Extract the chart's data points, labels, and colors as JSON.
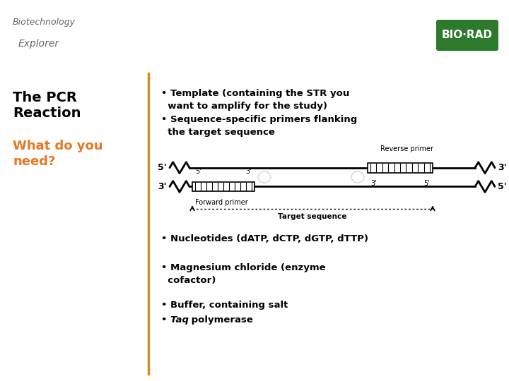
{
  "bg_color": "#ffffff",
  "header_bg": "#111111",
  "header_bar_color": "#e87722",
  "divider_color": "#c8922a",
  "title_text": "The PCR\nReaction",
  "title_color": "#000000",
  "subtitle_text": "What do you\nneed?",
  "subtitle_color": "#e87722",
  "bullet1a": "• Template (containing the STR you",
  "bullet1b": "  want to amplify for the study)",
  "bullet2a": "• Sequence-specific primers flanking",
  "bullet2b": "  the target sequence",
  "bullet3": "• Nucleotides (dATP, dCTP, dGTP, dTTP)",
  "bullet4a": "• Magnesium chloride (enzyme",
  "bullet4b": "  cofactor)",
  "bullet5": "• Buffer, containing salt",
  "bullet6_italic": "• Taq",
  "bullet6_normal": " polymerase",
  "biorad_color": "#2d7a2d",
  "biorad_text": "BIO·RAD",
  "biorad_text_color": "#ffffff",
  "bio_explorer_color": "#888888"
}
